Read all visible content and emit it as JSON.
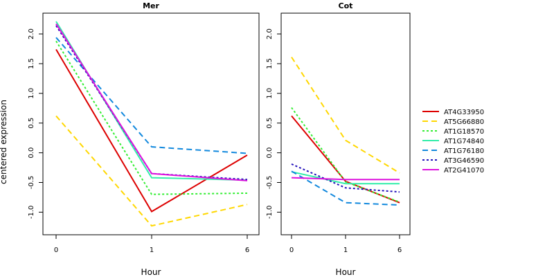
{
  "chart_data": {
    "type": "line",
    "ylabel": "centered expression",
    "xlabel": "Hour",
    "x": [
      "0",
      "1",
      "6"
    ],
    "y_ticks": [
      -1.0,
      -0.5,
      0.0,
      0.5,
      1.0,
      1.5,
      2.0
    ],
    "y_tick_labels": [
      "-1.0",
      "-0.5",
      "0.0",
      "0.5",
      "1.0",
      "1.5",
      "2.0"
    ],
    "ylim": [
      -1.38,
      2.35
    ],
    "legend_position": "right",
    "series_styles": [
      {
        "name": "AT4G33950",
        "color": "#dd0000",
        "dash": "solid"
      },
      {
        "name": "AT5G66880",
        "color": "#ffd700",
        "dash": "dashed"
      },
      {
        "name": "AT1G18570",
        "color": "#33ee33",
        "dash": "dotted"
      },
      {
        "name": "AT1G74840",
        "color": "#33eeaa",
        "dash": "solid"
      },
      {
        "name": "AT1G76180",
        "color": "#1188dd",
        "dash": "dashed"
      },
      {
        "name": "AT3G46590",
        "color": "#2211bb",
        "dash": "dotted"
      },
      {
        "name": "AT2G41070",
        "color": "#dd11dd",
        "dash": "solid"
      }
    ],
    "panels": [
      {
        "title": "Mer",
        "series": [
          {
            "name": "AT4G33950",
            "values": [
              1.74,
              -0.99,
              -0.04
            ]
          },
          {
            "name": "AT5G66880",
            "values": [
              0.62,
              -1.23,
              -0.87
            ]
          },
          {
            "name": "AT1G18570",
            "values": [
              1.88,
              -0.7,
              -0.68
            ]
          },
          {
            "name": "AT1G74840",
            "values": [
              2.21,
              -0.42,
              -0.46
            ]
          },
          {
            "name": "AT1G76180",
            "values": [
              1.94,
              0.1,
              -0.01
            ]
          },
          {
            "name": "AT3G46590",
            "values": [
              2.14,
              -0.35,
              -0.45
            ]
          },
          {
            "name": "AT2G41070",
            "values": [
              2.17,
              -0.35,
              -0.47
            ]
          }
        ]
      },
      {
        "title": "Cot",
        "series": [
          {
            "name": "AT4G33950",
            "values": [
              0.62,
              -0.48,
              -0.84
            ]
          },
          {
            "name": "AT5G66880",
            "values": [
              1.61,
              0.21,
              -0.34
            ]
          },
          {
            "name": "AT1G18570",
            "values": [
              0.76,
              -0.49,
              -0.83
            ]
          },
          {
            "name": "AT1G74840",
            "values": [
              -0.32,
              -0.52,
              -0.52
            ]
          },
          {
            "name": "AT1G76180",
            "values": [
              -0.31,
              -0.84,
              -0.88
            ]
          },
          {
            "name": "AT3G46590",
            "values": [
              -0.19,
              -0.59,
              -0.66
            ]
          },
          {
            "name": "AT2G41070",
            "values": [
              -0.42,
              -0.45,
              -0.45
            ]
          }
        ]
      }
    ]
  }
}
